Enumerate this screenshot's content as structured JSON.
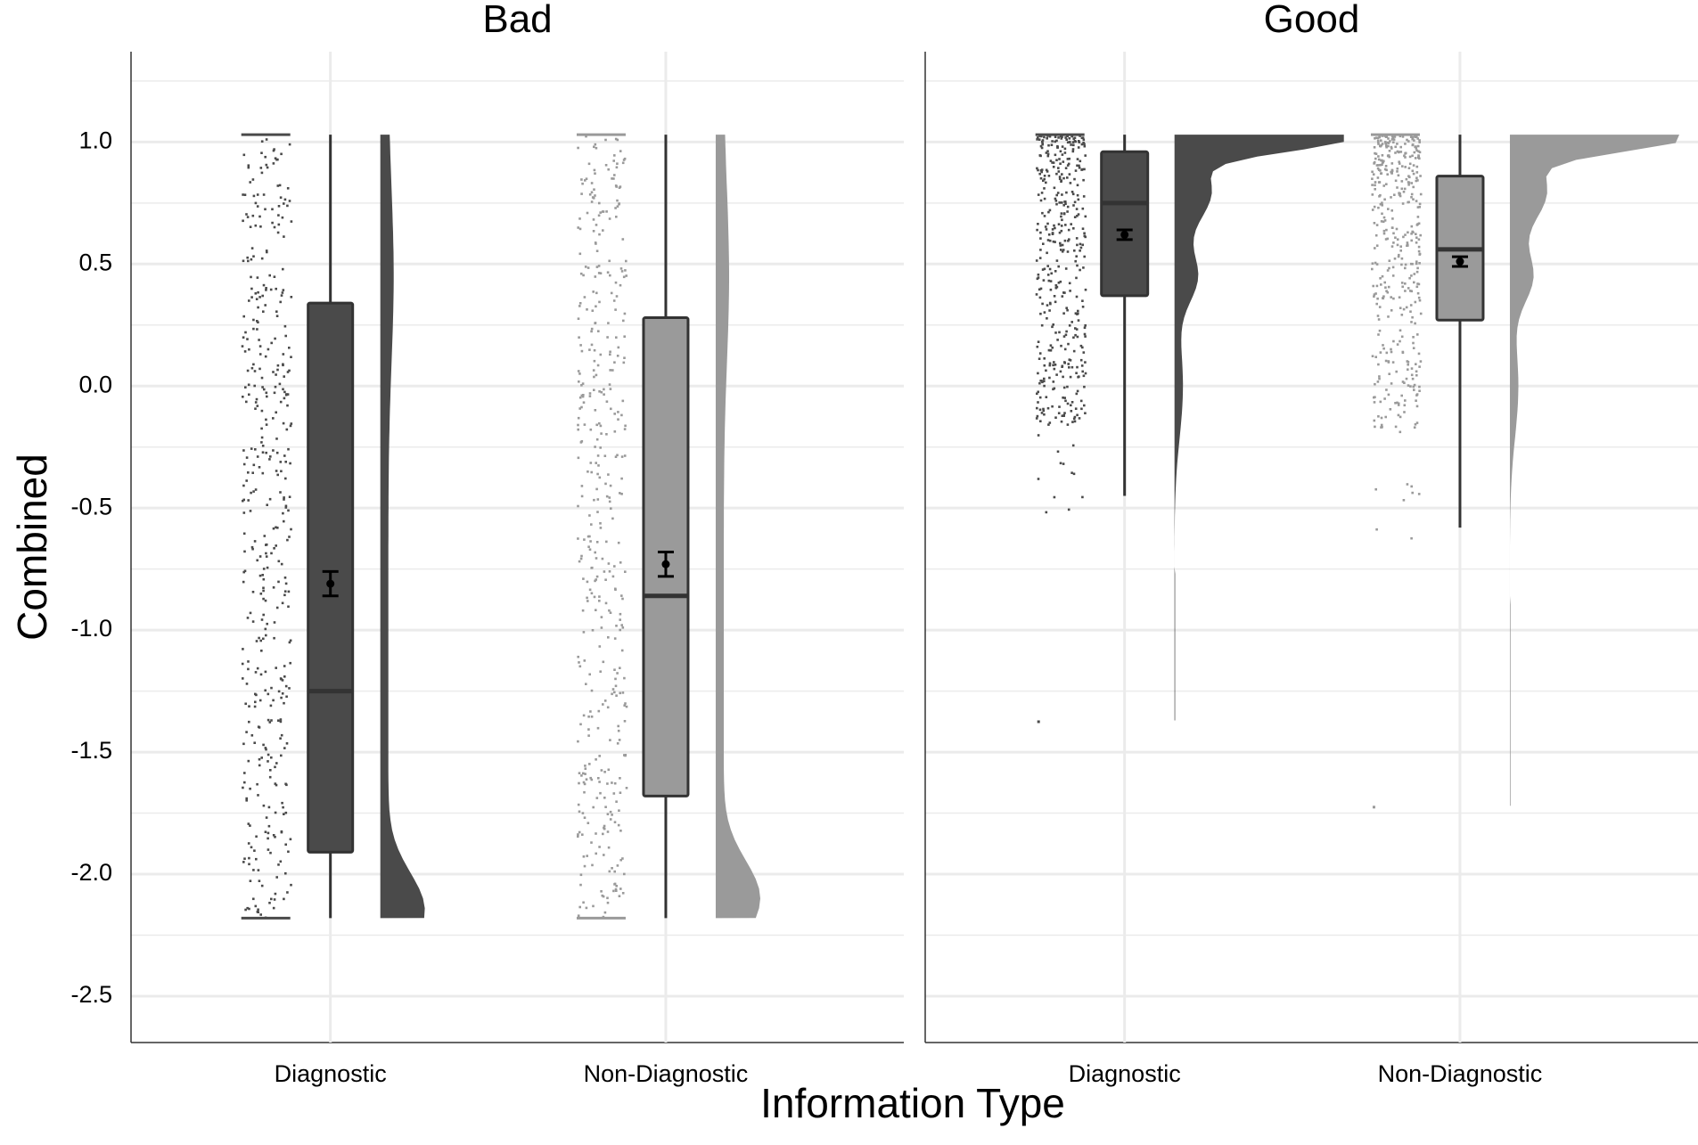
{
  "chart_data": {
    "type": "raincloud",
    "xlabel": "Information Type",
    "ylabel": "Combined",
    "ylim": [
      -2.69,
      1.37
    ],
    "y_ticks": [
      1.0,
      0.5,
      0.0,
      -0.5,
      -1.0,
      -1.5,
      -2.0,
      -2.5
    ],
    "y_tick_labels": [
      "1.0",
      "0.5",
      "0.0",
      "-0.5",
      "-1.0",
      "-1.5",
      "-2.0",
      "-2.5"
    ],
    "categories": [
      "Diagnostic",
      "Non-Diagnostic"
    ],
    "grid": true,
    "legend": "none",
    "colors": {
      "Diagnostic": "#4a4a4a",
      "Non-Diagnostic": "#9a9a9a",
      "grid": "#ebebeb",
      "text": "#000000"
    },
    "panels": [
      {
        "title": "Bad",
        "groups": [
          {
            "category": "Diagnostic",
            "box": {
              "q1": -1.91,
              "median": -1.25,
              "q3": 0.34,
              "whisker_low": -2.18,
              "whisker_high": 1.03
            },
            "mean": -0.81,
            "mean_ci": [
              -0.86,
              -0.76
            ],
            "y_range": [
              -2.18,
              1.03
            ],
            "density_peak": -2.15
          },
          {
            "category": "Non-Diagnostic",
            "box": {
              "q1": -1.68,
              "median": -0.86,
              "q3": 0.28,
              "whisker_low": -2.18,
              "whisker_high": 1.03
            },
            "mean": -0.73,
            "mean_ci": [
              -0.78,
              -0.68
            ],
            "y_range": [
              -2.18,
              1.03
            ],
            "density_peak": -2.1
          }
        ]
      },
      {
        "title": "Good",
        "groups": [
          {
            "category": "Diagnostic",
            "box": {
              "q1": 0.37,
              "median": 0.75,
              "q3": 0.96,
              "whisker_low": -0.45,
              "whisker_high": 1.03
            },
            "mean": 0.62,
            "mean_ci": [
              0.6,
              0.64
            ],
            "y_range": [
              -1.37,
              1.03
            ],
            "density_peak": 1.02
          },
          {
            "category": "Non-Diagnostic",
            "box": {
              "q1": 0.27,
              "median": 0.56,
              "q3": 0.86,
              "whisker_low": -0.58,
              "whisker_high": 1.03
            },
            "mean": 0.51,
            "mean_ci": [
              0.49,
              0.53
            ],
            "y_range": [
              -1.72,
              1.03
            ],
            "density_peak": 1.02
          }
        ]
      }
    ]
  }
}
